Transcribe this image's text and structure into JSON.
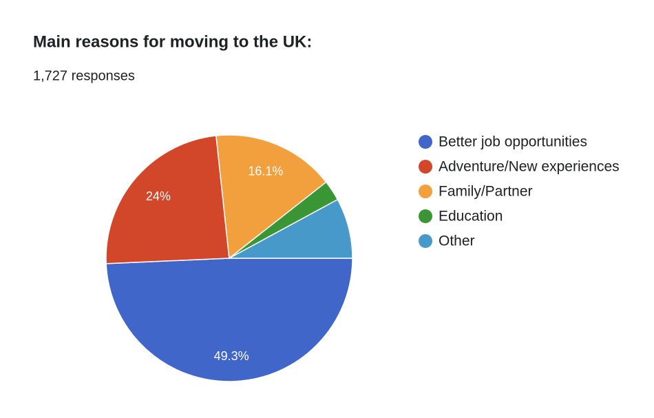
{
  "chart_data": {
    "type": "pie",
    "title": "Main reasons for moving to the UK:",
    "subtitle": "1,727 responses",
    "categories": [
      "Better job opportunities",
      "Adventure/New experiences",
      "Family/Partner",
      "Education",
      "Other"
    ],
    "values": [
      49.3,
      24,
      16.1,
      2.7,
      7.9
    ],
    "value_labels": [
      "49.3%",
      "24%",
      "16.1%",
      null,
      null
    ],
    "colors": [
      "#3f66c8",
      "#d2472a",
      "#f2a03d",
      "#3a9634",
      "#4699c9"
    ],
    "legend": "right"
  }
}
